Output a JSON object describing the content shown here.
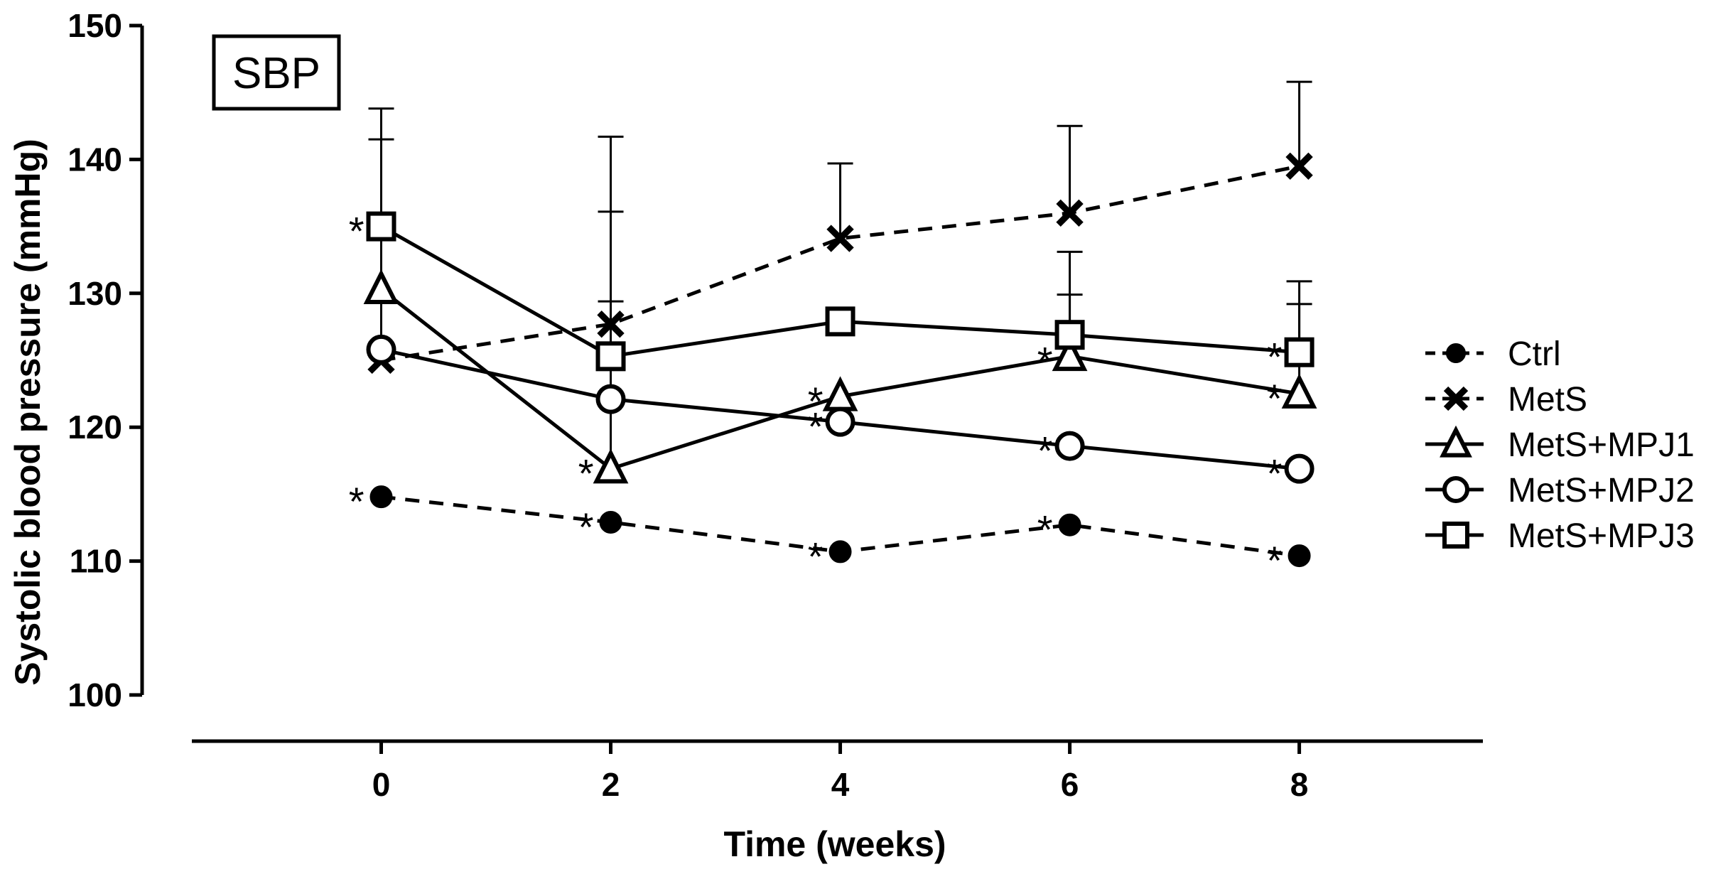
{
  "chart_data": {
    "type": "line",
    "panel_label": "SBP",
    "xlabel": "Time (weeks)",
    "ylabel": "Systolic blood pressure (mmHg)",
    "x": [
      0,
      2,
      4,
      6,
      8
    ],
    "x_ticks": [
      "0",
      "2",
      "4",
      "6",
      "8"
    ],
    "y_ticks": [
      "100",
      "110",
      "120",
      "130",
      "140",
      "150"
    ],
    "xlim": [
      -1.65,
      9.6
    ],
    "ylim": [
      100,
      150
    ],
    "legend_position": "right",
    "series": [
      {
        "name": "Ctrl",
        "marker": "filled-circle",
        "line": "dashed",
        "values": [
          114.8,
          112.9,
          110.7,
          112.7,
          110.4
        ],
        "error_upper": [
          null,
          null,
          null,
          null,
          null
        ],
        "significant": [
          true,
          true,
          true,
          true,
          true
        ]
      },
      {
        "name": "MetS",
        "marker": "x",
        "line": "dashed",
        "values": [
          125.0,
          127.7,
          134.1,
          136.0,
          139.5
        ],
        "error_upper": [
          141.5,
          136.1,
          139.7,
          142.5,
          145.8
        ],
        "significant": [
          false,
          false,
          false,
          false,
          false
        ]
      },
      {
        "name": "MetS+MPJ1",
        "marker": "open-triangle",
        "line": "solid",
        "values": [
          130.3,
          116.9,
          122.3,
          125.3,
          122.5
        ],
        "error_upper": [
          null,
          129.4,
          null,
          129.9,
          129.2
        ],
        "significant": [
          false,
          true,
          true,
          true,
          true
        ]
      },
      {
        "name": "MetS+MPJ2",
        "marker": "open-circle",
        "line": "solid",
        "values": [
          125.8,
          122.1,
          120.4,
          118.6,
          116.9
        ],
        "error_upper": [
          null,
          null,
          null,
          null,
          null
        ],
        "significant": [
          false,
          false,
          true,
          true,
          true
        ]
      },
      {
        "name": "MetS+MPJ3",
        "marker": "open-square",
        "line": "solid",
        "values": [
          135.0,
          125.3,
          127.9,
          126.9,
          125.6
        ],
        "error_upper": [
          143.8,
          141.7,
          null,
          133.1,
          130.9
        ],
        "significant": [
          true,
          false,
          false,
          false,
          true
        ]
      }
    ]
  }
}
